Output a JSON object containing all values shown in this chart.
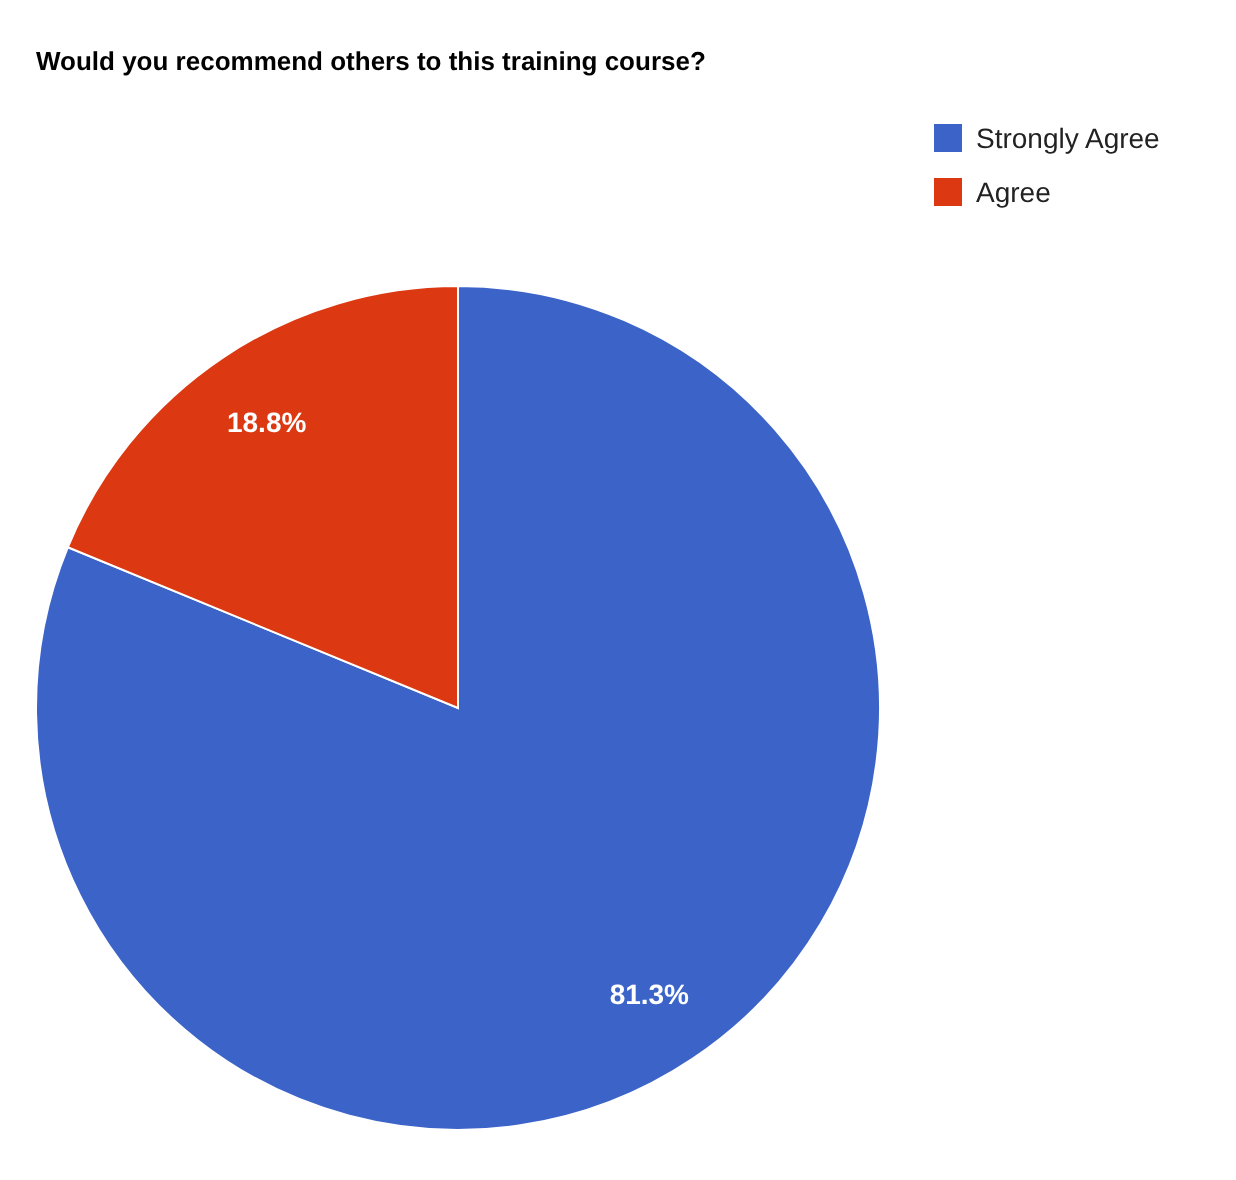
{
  "chart_data": {
    "type": "pie",
    "title": "Would you recommend others to this training course?",
    "categories": [
      "Strongly Agree",
      "Agree"
    ],
    "values": [
      81.3,
      18.8
    ],
    "colors": [
      "#3c64c8",
      "#dc3912"
    ],
    "value_labels": [
      "81.3%",
      "18.8%"
    ],
    "legend": "top right"
  }
}
